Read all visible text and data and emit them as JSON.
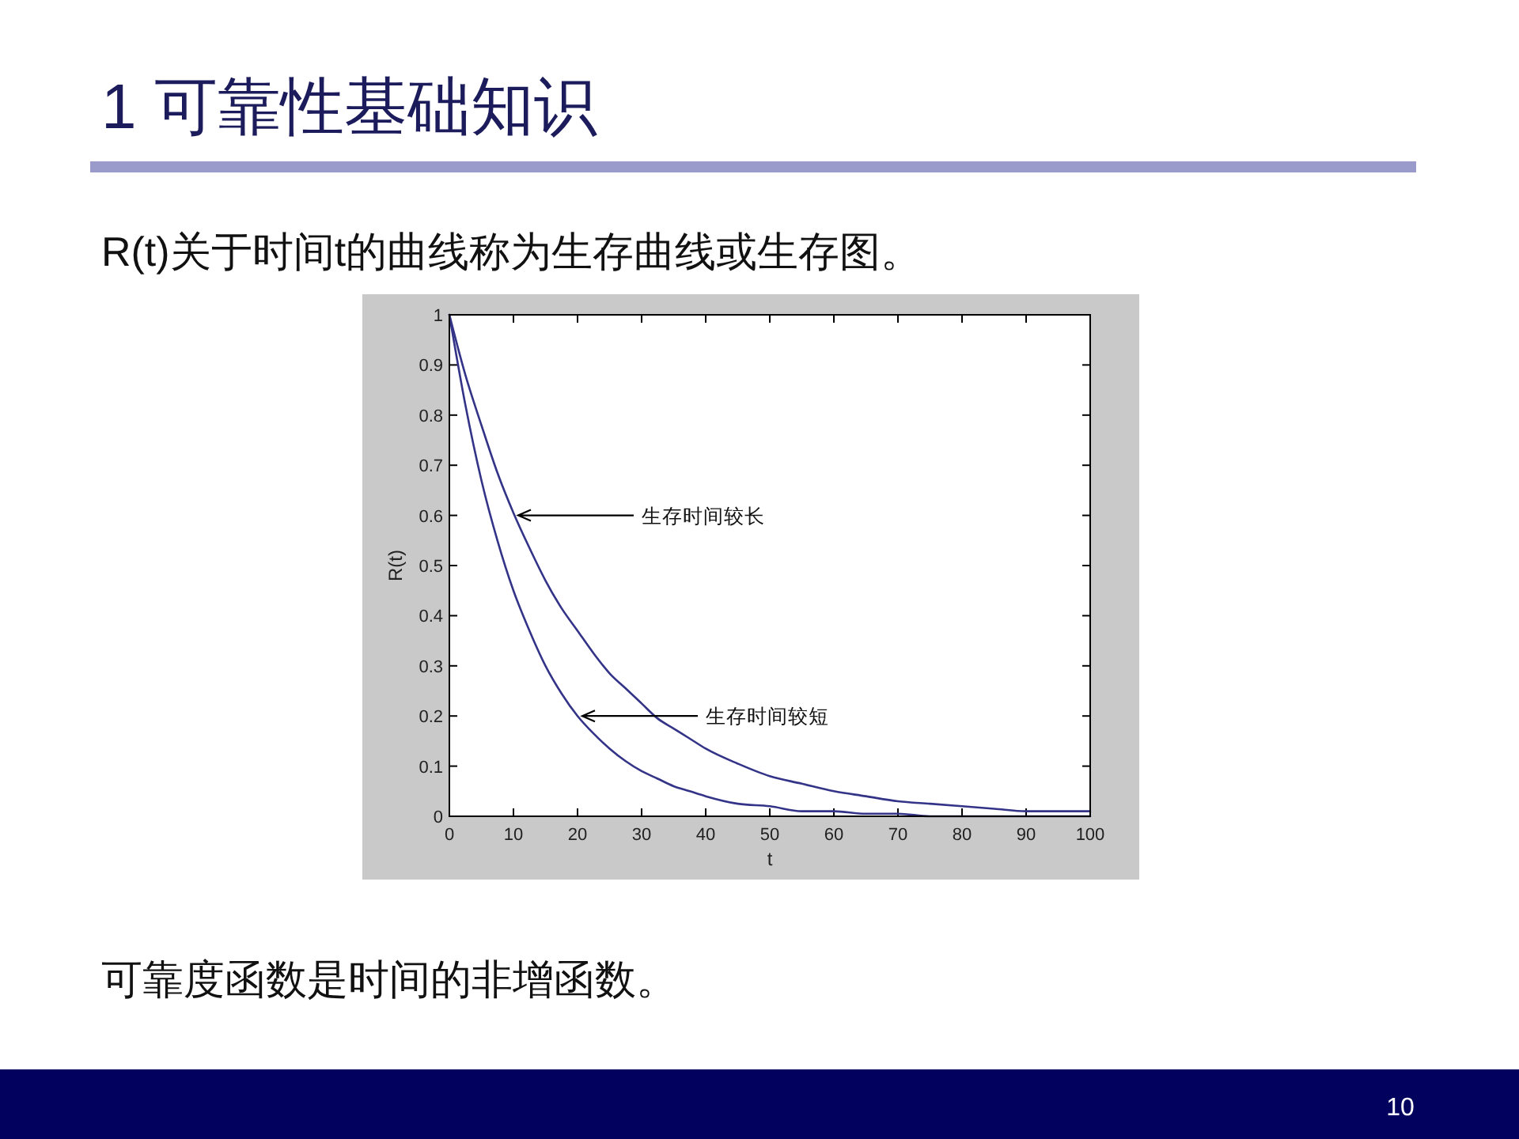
{
  "chart_data": {
    "type": "line",
    "title": "1 可靠性基础知识",
    "subtitle": "R(t)关于时间t的曲线称为生存曲线或生存图。",
    "xlabel": "t",
    "ylabel": "R(t)",
    "x": [
      0,
      2.5,
      5,
      7.5,
      10,
      12.5,
      15,
      17.5,
      20,
      22.5,
      25,
      27.5,
      30,
      32.5,
      35,
      37.5,
      40,
      45,
      50,
      55,
      60,
      65,
      70,
      75,
      80,
      85,
      90,
      95,
      100
    ],
    "series": [
      {
        "color": "#333388",
        "values": [
          1.0,
          0.88,
          0.78,
          0.685,
          0.605,
          0.535,
          0.47,
          0.415,
          0.37,
          0.325,
          0.285,
          0.255,
          0.225,
          0.195,
          0.175,
          0.155,
          0.135,
          0.105,
          0.08,
          0.065,
          0.05,
          0.04,
          0.03,
          0.025,
          0.02,
          0.015,
          0.01,
          0.01,
          0.01
        ]
      },
      {
        "color": "#333388",
        "values": [
          1.0,
          0.82,
          0.67,
          0.55,
          0.45,
          0.37,
          0.3,
          0.245,
          0.2,
          0.165,
          0.135,
          0.11,
          0.09,
          0.075,
          0.06,
          0.05,
          0.04,
          0.025,
          0.02,
          0.01,
          0.01,
          0.005,
          0.005,
          0,
          0,
          0,
          0,
          0,
          0
        ]
      }
    ],
    "xlim": [
      0,
      100
    ],
    "ylim": [
      0,
      1
    ],
    "xticks": [
      0,
      10,
      20,
      30,
      40,
      50,
      60,
      70,
      80,
      90,
      100
    ],
    "yticks": [
      0,
      0.1,
      0.2,
      0.3,
      0.4,
      0.5,
      0.6,
      0.7,
      0.8,
      0.9,
      1
    ],
    "annotations": [
      {
        "text": "生存时间较长",
        "x": 10,
        "y": 0.6
      },
      {
        "text": "生存时间较短",
        "x": 20,
        "y": 0.2
      },
      "可靠度函数是时间的非增函数。",
      "10"
    ]
  }
}
